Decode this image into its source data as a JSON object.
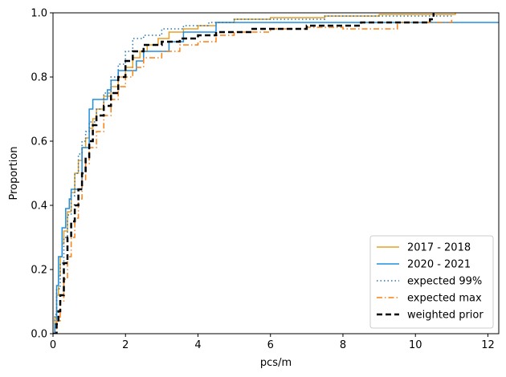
{
  "chart_data": {
    "type": "line",
    "step": true,
    "title": "",
    "xlabel": "pcs/m",
    "ylabel": "Proportion",
    "xlim": [
      0,
      12.3
    ],
    "ylim": [
      0,
      1
    ],
    "xticks": [
      0,
      2,
      4,
      6,
      8,
      10,
      12
    ],
    "xtick_labels": [
      "0",
      "2",
      "4",
      "6",
      "8",
      "10",
      "12"
    ],
    "yticks": [
      0.0,
      0.2,
      0.4,
      0.6,
      0.8,
      1.0
    ],
    "ytick_labels": [
      "0.0",
      "0.2",
      "0.4",
      "0.6",
      "0.8",
      "1.0"
    ],
    "grid": false,
    "legend_position": "lower-right",
    "series": [
      {
        "name": "2017 - 2018",
        "color": "#e8a022",
        "style": "solid",
        "x": [
          0,
          0.05,
          0.1,
          0.15,
          0.2,
          0.25,
          0.3,
          0.4,
          0.5,
          0.6,
          0.7,
          0.8,
          0.9,
          1.0,
          1.1,
          1.2,
          1.4,
          1.6,
          1.8,
          2.0,
          2.2,
          2.4,
          2.6,
          2.9,
          3.2,
          3.6,
          4.0,
          4.5,
          5.0,
          6.0,
          7.5,
          9.0,
          11.1
        ],
        "y": [
          0,
          0.05,
          0.12,
          0.18,
          0.24,
          0.28,
          0.32,
          0.38,
          0.44,
          0.5,
          0.54,
          0.58,
          0.61,
          0.64,
          0.67,
          0.7,
          0.74,
          0.77,
          0.8,
          0.83,
          0.86,
          0.88,
          0.9,
          0.92,
          0.94,
          0.95,
          0.96,
          0.97,
          0.98,
          0.985,
          0.99,
          0.995,
          1.0
        ]
      },
      {
        "name": "2020 - 2021",
        "color": "#1e8fe0",
        "style": "solid",
        "x": [
          0,
          0.05,
          0.1,
          0.15,
          0.25,
          0.35,
          0.45,
          0.5,
          0.8,
          1.0,
          1.1,
          1.5,
          1.6,
          1.8,
          2.3,
          2.5,
          3.2,
          3.6,
          4.4,
          4.5,
          12.3
        ],
        "y": [
          0,
          0.03,
          0.15,
          0.24,
          0.33,
          0.39,
          0.42,
          0.45,
          0.58,
          0.7,
          0.73,
          0.76,
          0.79,
          0.82,
          0.85,
          0.88,
          0.91,
          0.94,
          0.94,
          0.97,
          0.97
        ]
      },
      {
        "name": "expected 99%",
        "color": "#1f77b4",
        "style": "dotted",
        "x": [
          0,
          0.05,
          0.1,
          0.2,
          0.3,
          0.4,
          0.5,
          0.6,
          0.7,
          0.8,
          0.9,
          1.0,
          1.2,
          1.4,
          1.6,
          1.8,
          2.0,
          2.2,
          2.5,
          3.0,
          3.6,
          4.3,
          5.0,
          7.5,
          9.2,
          11.0
        ],
        "y": [
          0,
          0.06,
          0.14,
          0.22,
          0.3,
          0.37,
          0.43,
          0.5,
          0.56,
          0.6,
          0.63,
          0.66,
          0.7,
          0.75,
          0.8,
          0.84,
          0.88,
          0.92,
          0.93,
          0.95,
          0.96,
          0.97,
          0.98,
          0.99,
          0.99,
          0.99
        ]
      },
      {
        "name": "expected max",
        "color": "#ff7f0e",
        "style": "dashdot",
        "x": [
          0,
          0.1,
          0.2,
          0.3,
          0.4,
          0.5,
          0.6,
          0.7,
          0.8,
          0.9,
          1.0,
          1.2,
          1.4,
          1.6,
          1.8,
          2.0,
          2.2,
          2.5,
          3.0,
          3.5,
          4.0,
          4.5,
          5.0,
          6.0,
          7.0,
          8.0,
          9.5,
          11.0
        ],
        "y": [
          0,
          0.04,
          0.1,
          0.17,
          0.24,
          0.3,
          0.36,
          0.42,
          0.48,
          0.53,
          0.58,
          0.63,
          0.68,
          0.73,
          0.77,
          0.8,
          0.83,
          0.86,
          0.88,
          0.9,
          0.91,
          0.93,
          0.94,
          0.95,
          0.955,
          0.95,
          0.97,
          0.98
        ]
      },
      {
        "name": "weighted prior",
        "color": "#000000",
        "style": "dashed",
        "x": [
          0,
          0.1,
          0.15,
          0.2,
          0.3,
          0.4,
          0.5,
          0.6,
          0.7,
          0.8,
          0.9,
          1.0,
          1.1,
          1.2,
          1.4,
          1.6,
          1.8,
          2.0,
          2.2,
          2.5,
          3.0,
          3.5,
          4.0,
          4.5,
          5.5,
          7.0,
          8.5,
          10.4,
          10.5
        ],
        "y": [
          0,
          0.03,
          0.07,
          0.12,
          0.22,
          0.3,
          0.35,
          0.4,
          0.45,
          0.5,
          0.55,
          0.6,
          0.65,
          0.68,
          0.71,
          0.75,
          0.8,
          0.85,
          0.88,
          0.9,
          0.91,
          0.92,
          0.93,
          0.94,
          0.95,
          0.96,
          0.97,
          0.98,
          1.0
        ]
      }
    ]
  }
}
